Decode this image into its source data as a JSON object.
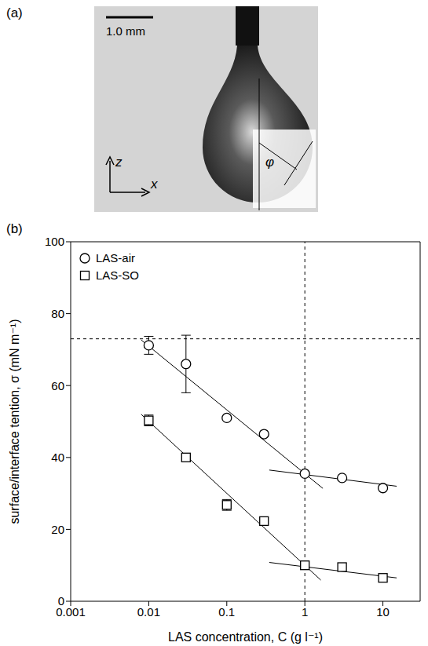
{
  "panel_a": {
    "label": "(a)",
    "scale_bar": "1.0 mm",
    "axis_vertical": "z",
    "axis_horizontal": "x",
    "angle": "φ"
  },
  "chart_data": {
    "type": "scatter",
    "panel_label": "(b)",
    "xlabel": "LAS concentration, C (g l⁻¹)",
    "ylabel": "surface/interface tention, σ (mN m⁻¹)",
    "log": "x",
    "xlim": [
      0.001,
      30
    ],
    "xticks": [
      0.001,
      0.01,
      0.1,
      1,
      10
    ],
    "ylim": [
      0,
      100
    ],
    "yticks": [
      0,
      20,
      40,
      60,
      80,
      100
    ],
    "grid": false,
    "legend": "upper left",
    "series": [
      {
        "name": "LAS-air",
        "color": "#000000",
        "marker": "circle",
        "x": [
          0.01,
          0.03,
          0.1,
          0.3,
          1,
          3,
          10
        ],
        "values": [
          71.2,
          66,
          51,
          46.5,
          35.5,
          34.3,
          31.5
        ],
        "errors": [
          2.5,
          8,
          null,
          null,
          null,
          null,
          null
        ]
      },
      {
        "name": "LAS-SO",
        "color": "#000000",
        "marker": "square",
        "x": [
          0.01,
          0.03,
          0.1,
          0.3,
          1,
          3,
          10
        ],
        "values": [
          50.3,
          40,
          26.8,
          22.3,
          10,
          9.5,
          6.5
        ],
        "errors": [
          1.5,
          null,
          1.5,
          null,
          null,
          null,
          null
        ]
      }
    ],
    "fit_lines": [
      {
        "series": "LAS-air",
        "x": [
          0.008,
          1.7
        ],
        "values": [
          72.7,
          31.4
        ]
      },
      {
        "series": "LAS-air",
        "x": [
          0.35,
          15
        ],
        "values": [
          36.5,
          32
        ]
      },
      {
        "series": "LAS-SO",
        "x": [
          0.008,
          1.6
        ],
        "values": [
          52,
          5.9
        ]
      },
      {
        "series": "LAS-SO",
        "x": [
          0.35,
          15
        ],
        "values": [
          10.8,
          6.5
        ]
      }
    ],
    "reference_lines": {
      "x": 1,
      "y": 73
    }
  }
}
